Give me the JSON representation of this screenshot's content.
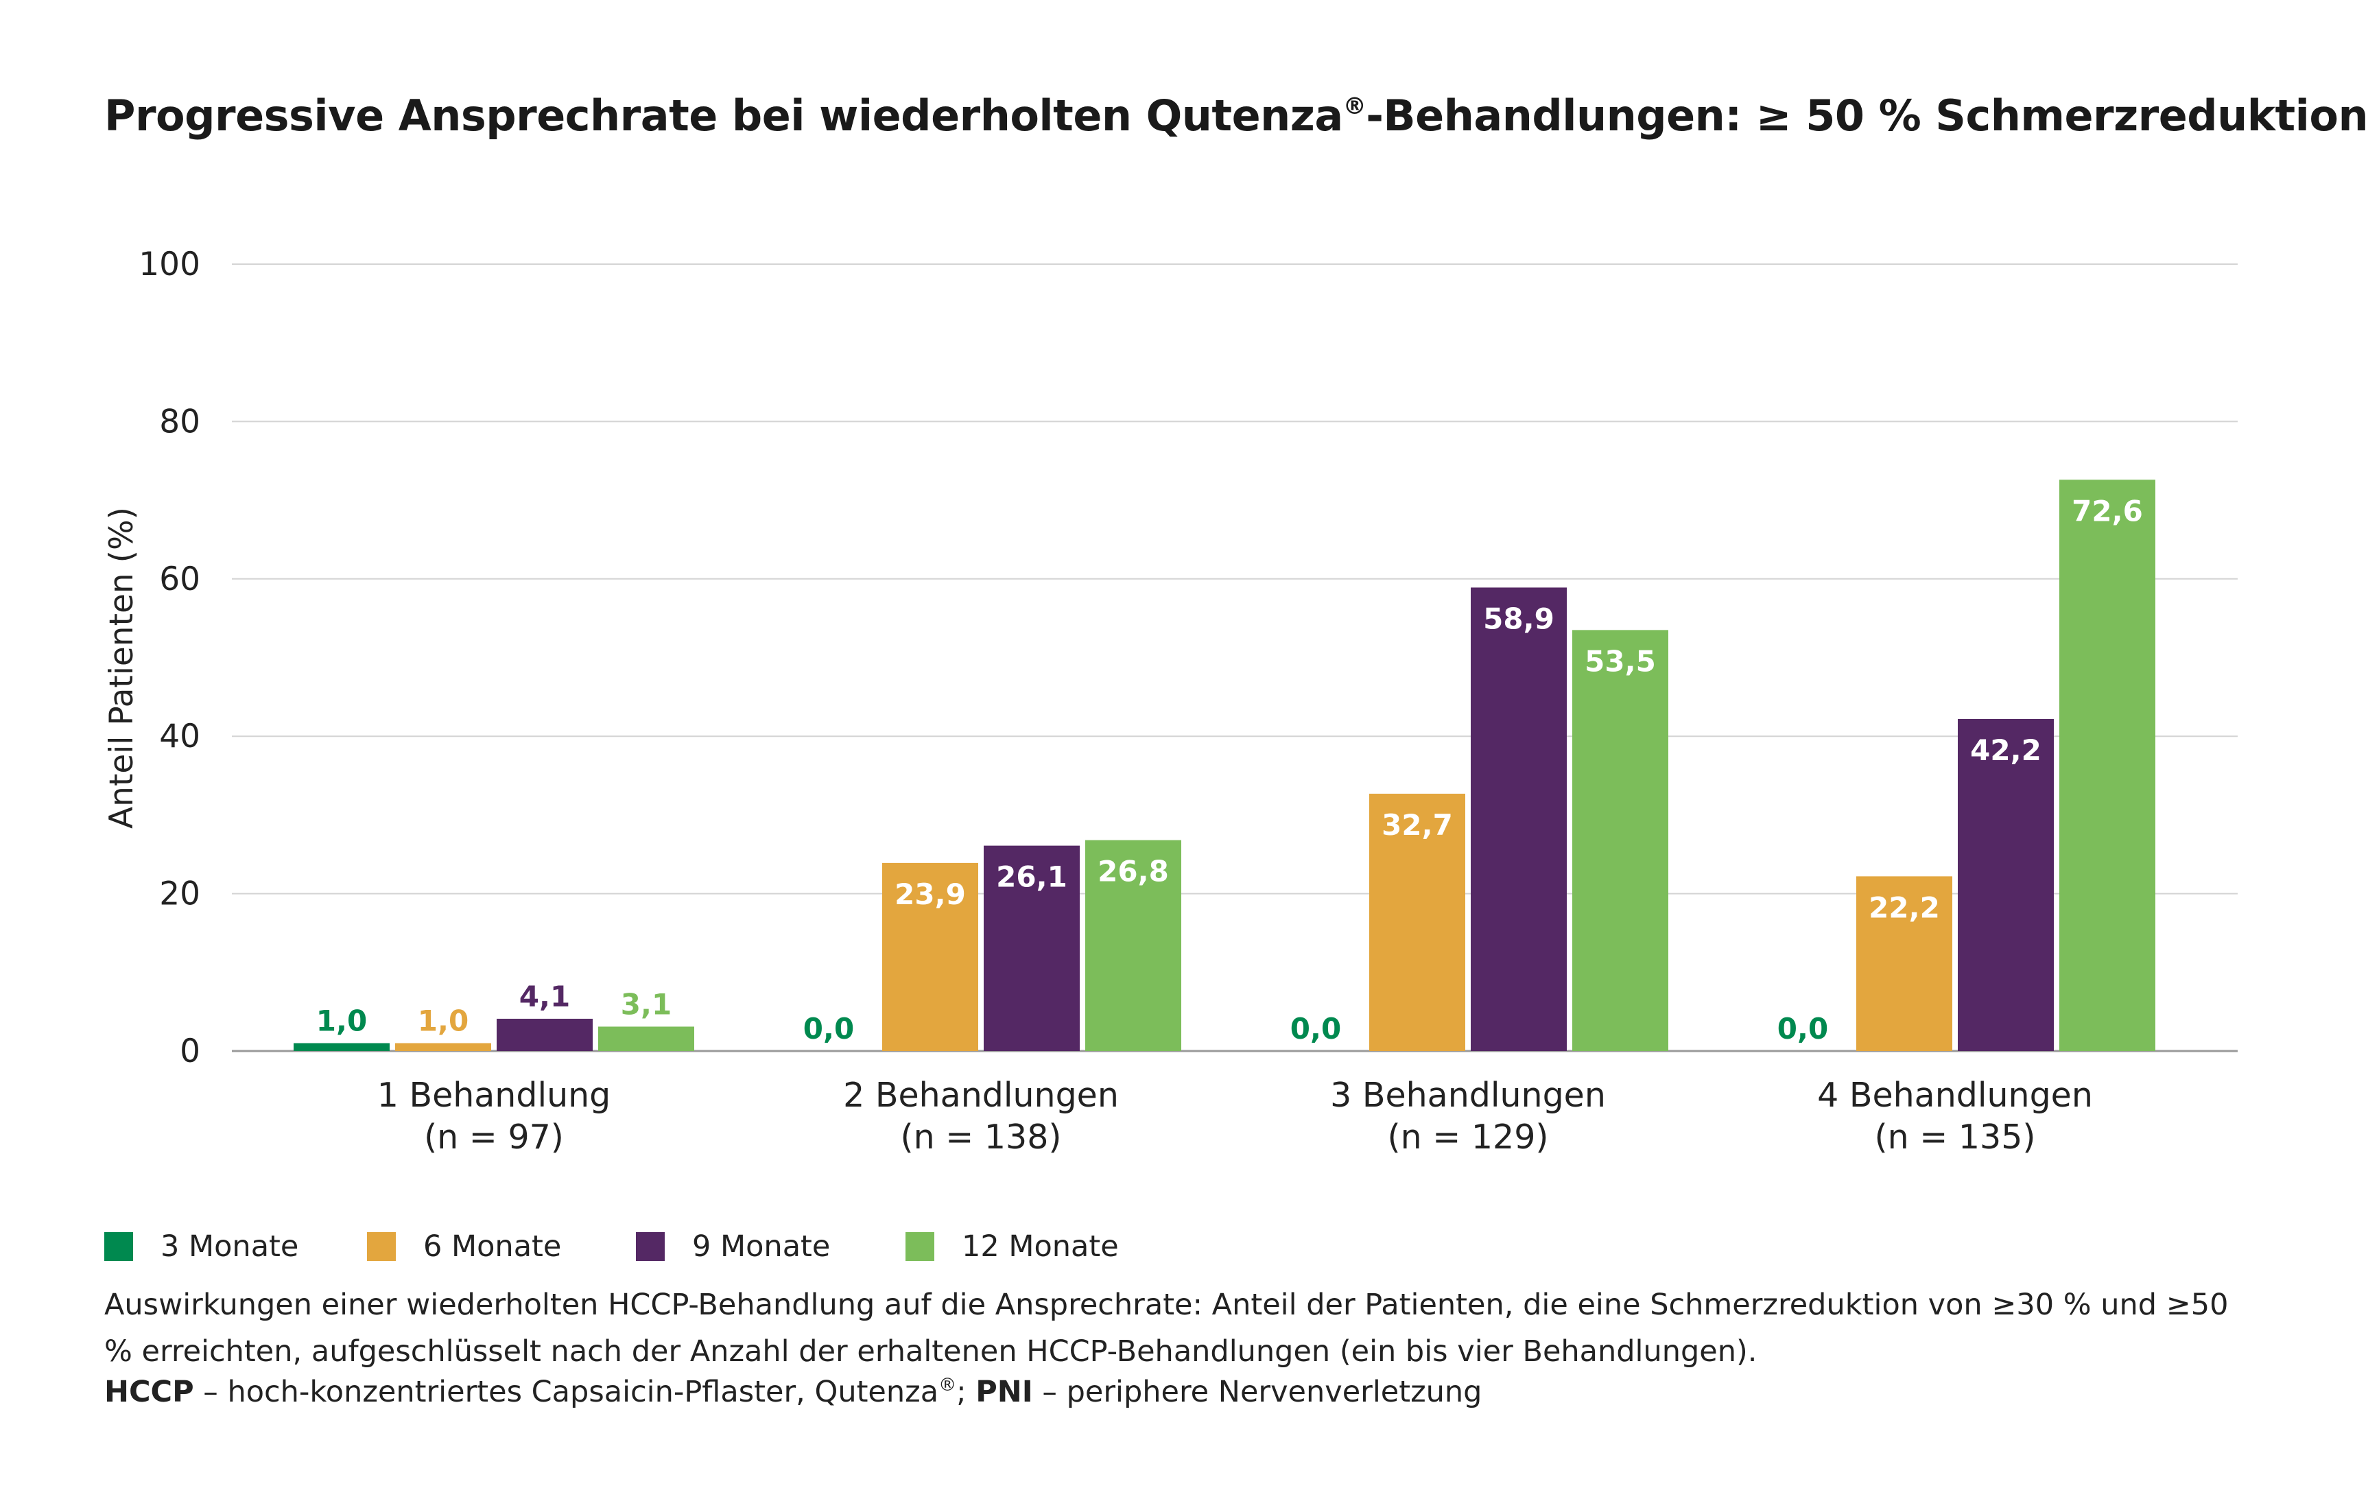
{
  "title": {
    "main": "Progressive Ansprechrate bei wiederholten Qutenza",
    "reg": "®",
    "rest": "-Behandlungen: ≥ 50 % Schmerzreduktion"
  },
  "chart_data": {
    "type": "bar",
    "title": "Progressive Ansprechrate bei wiederholten Qutenza®-Behandlungen: ≥ 50 % Schmerzreduktion",
    "ylabel": "Anteil Patienten (%)",
    "ylim": [
      0,
      100
    ],
    "yticks": [
      0,
      20,
      40,
      60,
      80,
      100
    ],
    "grid": true,
    "categories": [
      {
        "label": "1 Behandlung",
        "n": "(n = 97)"
      },
      {
        "label": "2 Behandlungen",
        "n": "(n = 138)"
      },
      {
        "label": "3 Behandlungen",
        "n": "(n = 129)"
      },
      {
        "label": "4 Behandlungen",
        "n": "(n = 135)"
      }
    ],
    "series": [
      {
        "name": "3 Monate",
        "color": "#00894f",
        "values": [
          1.0,
          0.0,
          0.0,
          0.0
        ],
        "labels": [
          "1,0",
          "0,0",
          "0,0",
          "0,0"
        ]
      },
      {
        "name": "6 Monate",
        "color": "#e3a63e",
        "values": [
          1.0,
          23.9,
          32.7,
          22.2
        ],
        "labels": [
          "1,0",
          "23,9",
          "32,7",
          "22,2"
        ]
      },
      {
        "name": "9 Monate",
        "color": "#542864",
        "values": [
          4.1,
          26.1,
          58.9,
          42.2
        ],
        "labels": [
          "4,1",
          "26,1",
          "58,9",
          "42,2"
        ]
      },
      {
        "name": "12 Monate",
        "color": "#7cbd5a",
        "values": [
          3.1,
          26.8,
          53.5,
          72.6
        ],
        "labels": [
          "3,1",
          "26,8",
          "53,5",
          "72,6"
        ]
      }
    ],
    "legend_position": "bottom-left"
  },
  "caption": "Auswirkungen einer wiederholten HCCP-Behandlung auf die Ansprechrate: Anteil der Patienten, die eine Schmerzreduktion von ≥30 % und ≥50 % erreichten, aufgeschlüsselt nach der Anzahl der erhaltenen HCCP-Behandlungen (ein bis vier Behandlungen).",
  "abbreviations": {
    "hccp_term": "HCCP",
    "hccp_text": " – hoch-konzentriertes Capsaicin-Pflaster, Qutenza",
    "reg": "®",
    "sep": "; ",
    "pni_term": "PNI",
    "pni_text": " – periphere Nervenverletzung"
  }
}
